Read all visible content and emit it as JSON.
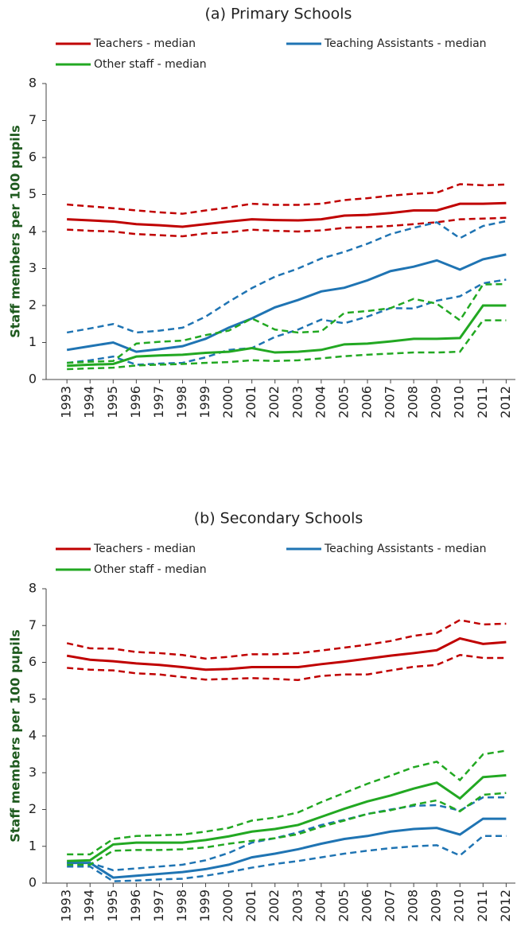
{
  "chart_data": [
    {
      "type": "line",
      "title": "(a) Primary Schools",
      "ylabel": "Staff members per 100 pupils",
      "x": [
        1993,
        1994,
        1995,
        1996,
        1997,
        1998,
        1999,
        2000,
        2001,
        2002,
        2003,
        2004,
        2005,
        2006,
        2007,
        2008,
        2009,
        2010,
        2011,
        2012
      ],
      "xlim": [
        1992.1,
        2012.4
      ],
      "xticks": [
        1993,
        1994,
        1995,
        1996,
        1997,
        1998,
        1999,
        2000,
        2001,
        2002,
        2003,
        2004,
        2005,
        2006,
        2007,
        2008,
        2009,
        2010,
        2011,
        2012
      ],
      "ylim": [
        0,
        8
      ],
      "yticks": [
        0,
        1,
        2,
        3,
        4,
        5,
        6,
        7,
        8
      ],
      "series": [
        {
          "name": "Teachers  - median",
          "color": "#c00000",
          "values": [
            4.33,
            4.3,
            4.27,
            4.2,
            4.17,
            4.13,
            4.2,
            4.27,
            4.33,
            4.31,
            4.3,
            4.33,
            4.43,
            4.45,
            4.5,
            4.57,
            4.57,
            4.75,
            4.75,
            4.77
          ]
        },
        {
          "color": "#c00000",
          "dash": true,
          "values": [
            4.73,
            4.68,
            4.63,
            4.57,
            4.52,
            4.48,
            4.57,
            4.65,
            4.75,
            4.72,
            4.72,
            4.75,
            4.85,
            4.9,
            4.97,
            5.02,
            5.05,
            5.28,
            5.25,
            5.27
          ]
        },
        {
          "color": "#c00000",
          "dash": true,
          "values": [
            4.05,
            4.02,
            4.0,
            3.93,
            3.9,
            3.87,
            3.95,
            3.98,
            4.05,
            4.02,
            4.0,
            4.03,
            4.1,
            4.12,
            4.15,
            4.2,
            4.25,
            4.33,
            4.35,
            4.37
          ]
        },
        {
          "name": "Teaching Assistants - median",
          "color": "#1f74b3",
          "values": [
            0.8,
            0.9,
            1.0,
            0.75,
            0.82,
            0.9,
            1.1,
            1.4,
            1.65,
            1.95,
            2.15,
            2.38,
            2.48,
            2.68,
            2.93,
            3.05,
            3.22,
            2.97,
            3.25,
            3.38
          ]
        },
        {
          "color": "#1f74b3",
          "dash": true,
          "values": [
            1.27,
            1.38,
            1.5,
            1.27,
            1.32,
            1.4,
            1.7,
            2.1,
            2.47,
            2.78,
            3.0,
            3.27,
            3.45,
            3.67,
            3.93,
            4.1,
            4.25,
            3.82,
            4.15,
            4.28
          ]
        },
        {
          "color": "#1f74b3",
          "dash": true,
          "values": [
            0.45,
            0.52,
            0.62,
            0.4,
            0.43,
            0.45,
            0.6,
            0.8,
            0.85,
            1.15,
            1.35,
            1.62,
            1.52,
            1.7,
            1.93,
            1.92,
            2.13,
            2.25,
            2.6,
            2.7
          ]
        },
        {
          "name": "Other staff - median",
          "color": "#22a822",
          "values": [
            0.37,
            0.4,
            0.42,
            0.62,
            0.65,
            0.67,
            0.72,
            0.75,
            0.85,
            0.73,
            0.75,
            0.8,
            0.95,
            0.97,
            1.03,
            1.1,
            1.1,
            1.12,
            2.0,
            2.0
          ]
        },
        {
          "color": "#22a822",
          "dash": true,
          "values": [
            0.45,
            0.48,
            0.5,
            0.97,
            1.02,
            1.05,
            1.2,
            1.32,
            1.65,
            1.35,
            1.27,
            1.3,
            1.8,
            1.85,
            1.93,
            2.18,
            2.05,
            1.6,
            2.57,
            2.58
          ]
        },
        {
          "color": "#22a822",
          "dash": true,
          "values": [
            0.28,
            0.3,
            0.32,
            0.38,
            0.4,
            0.42,
            0.45,
            0.47,
            0.52,
            0.5,
            0.52,
            0.57,
            0.63,
            0.67,
            0.7,
            0.73,
            0.73,
            0.75,
            1.6,
            1.6
          ]
        }
      ]
    },
    {
      "type": "line",
      "title": "(b) Secondary Schools",
      "ylabel": "Staff members per 100 pupils",
      "x": [
        1993,
        1994,
        1995,
        1996,
        1997,
        1998,
        1999,
        2000,
        2001,
        2002,
        2003,
        2004,
        2005,
        2006,
        2007,
        2008,
        2009,
        2010,
        2011,
        2012
      ],
      "xlim": [
        1992.1,
        2012.4
      ],
      "xticks": [
        1993,
        1994,
        1995,
        1996,
        1997,
        1998,
        1999,
        2000,
        2001,
        2002,
        2003,
        2004,
        2005,
        2006,
        2007,
        2008,
        2009,
        2010,
        2011,
        2012
      ],
      "ylim": [
        0,
        8
      ],
      "yticks": [
        0,
        1,
        2,
        3,
        4,
        5,
        6,
        7,
        8
      ],
      "series": [
        {
          "name": "Teachers  - median",
          "color": "#c00000",
          "values": [
            6.18,
            6.07,
            6.03,
            5.97,
            5.93,
            5.87,
            5.8,
            5.82,
            5.87,
            5.87,
            5.87,
            5.95,
            6.02,
            6.1,
            6.18,
            6.25,
            6.33,
            6.65,
            6.5,
            6.55
          ]
        },
        {
          "color": "#c00000",
          "dash": true,
          "values": [
            6.52,
            6.38,
            6.37,
            6.28,
            6.25,
            6.2,
            6.1,
            6.15,
            6.22,
            6.22,
            6.25,
            6.32,
            6.4,
            6.48,
            6.58,
            6.72,
            6.8,
            7.15,
            7.03,
            7.05
          ]
        },
        {
          "color": "#c00000",
          "dash": true,
          "values": [
            5.85,
            5.8,
            5.78,
            5.7,
            5.67,
            5.6,
            5.53,
            5.55,
            5.57,
            5.55,
            5.52,
            5.63,
            5.67,
            5.67,
            5.78,
            5.88,
            5.93,
            6.2,
            6.12,
            6.12
          ]
        },
        {
          "name": "Teaching Assistants - median",
          "color": "#1f74b3",
          "values": [
            0.55,
            0.55,
            0.15,
            0.2,
            0.25,
            0.3,
            0.38,
            0.5,
            0.7,
            0.8,
            0.92,
            1.07,
            1.2,
            1.28,
            1.4,
            1.47,
            1.5,
            1.32,
            1.75,
            1.75
          ]
        },
        {
          "color": "#1f74b3",
          "dash": true,
          "values": [
            0.55,
            0.55,
            0.35,
            0.4,
            0.45,
            0.5,
            0.62,
            0.82,
            1.1,
            1.22,
            1.38,
            1.58,
            1.72,
            1.88,
            2.0,
            2.1,
            2.12,
            1.97,
            2.33,
            2.33
          ]
        },
        {
          "color": "#1f74b3",
          "dash": true,
          "values": [
            0.45,
            0.45,
            0.05,
            0.07,
            0.1,
            0.12,
            0.2,
            0.3,
            0.42,
            0.52,
            0.6,
            0.7,
            0.8,
            0.88,
            0.95,
            1.0,
            1.03,
            0.75,
            1.28,
            1.28
          ]
        },
        {
          "name": "Other staff - median",
          "color": "#22a822",
          "values": [
            0.6,
            0.62,
            1.05,
            1.1,
            1.1,
            1.1,
            1.17,
            1.27,
            1.4,
            1.47,
            1.58,
            1.8,
            2.02,
            2.22,
            2.38,
            2.57,
            2.73,
            2.3,
            2.88,
            2.93
          ]
        },
        {
          "color": "#22a822",
          "dash": true,
          "values": [
            0.78,
            0.78,
            1.2,
            1.28,
            1.3,
            1.32,
            1.4,
            1.5,
            1.7,
            1.78,
            1.92,
            2.2,
            2.45,
            2.7,
            2.92,
            3.15,
            3.3,
            2.8,
            3.5,
            3.6
          ]
        },
        {
          "color": "#22a822",
          "dash": true,
          "values": [
            0.5,
            0.5,
            0.88,
            0.9,
            0.9,
            0.92,
            0.97,
            1.07,
            1.15,
            1.22,
            1.33,
            1.53,
            1.7,
            1.88,
            1.98,
            2.13,
            2.25,
            1.95,
            2.4,
            2.45
          ]
        }
      ]
    }
  ]
}
